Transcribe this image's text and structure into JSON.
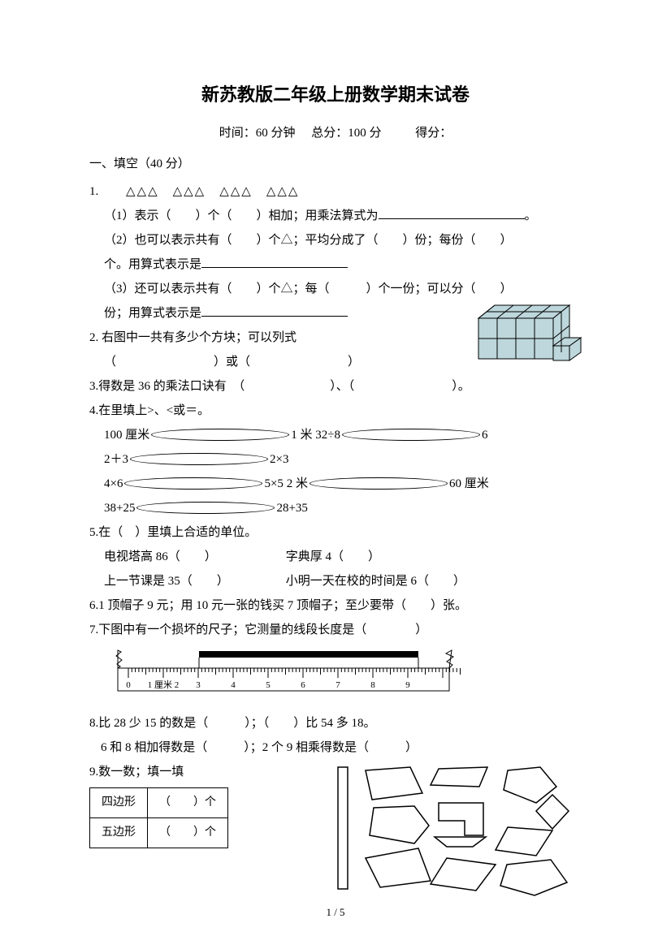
{
  "title": "新苏教版二年级上册数学期末试卷",
  "meta": {
    "time": "时间：60 分钟",
    "total": "总分：100 分",
    "score": "得分："
  },
  "section1": "一、填空（40 分）",
  "q1": {
    "num": "1.",
    "triangles": "△△△　△△△　△△△　△△△",
    "p1a": "（1）表示（　　）个（　　）相加；用乘法算式为",
    "p1b": "。",
    "p2": "（2）也可以表示共有（　　）个△；平均分成了（　　）份；每份（　　）",
    "p2b": "个。用算式表示是",
    "p3": "（3）还可以表示共有（　　）个△；每（　　　）个一份；可以分（　　）",
    "p3b": "份；用算式表示是"
  },
  "q2": {
    "num": "2.",
    "t": "右图中一共有多少个方块；可以列式",
    "t2": "（　　　　　　　　）或（　　　　　　　　）"
  },
  "q3": {
    "num": "3.",
    "t": "得数是 36 的乘法口诀有　（　　　　　　　）、（　　　　　　　　）。"
  },
  "q4": {
    "num": "4.",
    "t": "在里填上>、<或＝。",
    "r1a": "100 厘米 ◯ 1 米",
    "r1b": "32÷8 ◯ 6",
    "r1c": "2＋3 ◯ 2×3",
    "r2a": "4×6 ◯ 5×5",
    "r2b": "2 米 ◯ 60 厘米",
    "r2c": "38+25 ◯ 28+35"
  },
  "q5": {
    "num": "5.",
    "t": "在（　）里填上合适的单位。",
    "r1a": "电视塔高 86（　　）",
    "r1b": "字典厚 4（　　）",
    "r2a": "上一节课是 35（　　）",
    "r2b": "小明一天在校的时间是 6（　　）"
  },
  "q6": {
    "num": "6.",
    "t": "1 顶帽子 9 元；用 10 元一张的钱买 7 顶帽子；至少要带（　　）张。"
  },
  "q7": {
    "num": "7.",
    "t": "下图中有一个损坏的尺子；它测量的线段长度是（　　　　）"
  },
  "q8": {
    "num": "8.",
    "t": "比 28 少 15 的数是（　　　）；（　　）比 54 多 18。",
    "t2": "6 和 8 相加得数是（　　　）；2 个 9 相乘得数是（　　　）"
  },
  "q9": {
    "num": "9.",
    "t": "数一数；填一填",
    "row1": "四边形",
    "row1v": "（　　）个",
    "row2": "五边形",
    "row2v": "（　　）个"
  },
  "ruler": {
    "ticks": [
      "0",
      "1 厘米 2",
      "3",
      "4",
      "5",
      "6",
      "7",
      "8",
      "9"
    ],
    "bar_start": 2.1,
    "bar_end": 8.3,
    "colors": {
      "bg": "#ffffff",
      "line": "#000000",
      "bar": "#000000"
    }
  },
  "cubes": {
    "fill": "#bdd7dc",
    "stroke": "#000000"
  },
  "shapes": {
    "stroke": "#000000",
    "fill": "none"
  },
  "page": "1 / 5"
}
